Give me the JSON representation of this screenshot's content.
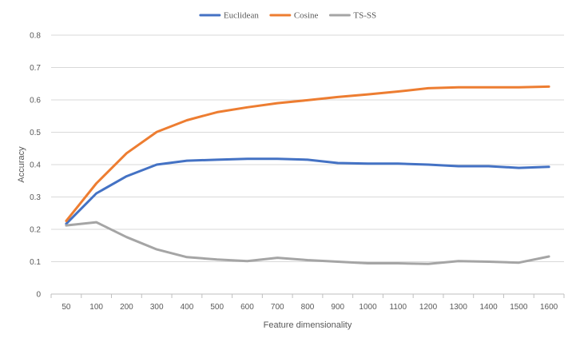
{
  "chart_data": {
    "type": "line",
    "title": "",
    "xlabel": "Feature dimensionality",
    "ylabel": "Accuracy",
    "ylim": [
      0,
      0.8
    ],
    "yticks": [
      "0",
      "0.1",
      "0.2",
      "0.3",
      "0.4",
      "0.5",
      "0.6",
      "0.7",
      "0.8"
    ],
    "grid": "horizontal",
    "legend_position": "top",
    "categories": [
      "50",
      "100",
      "200",
      "300",
      "400",
      "500",
      "600",
      "700",
      "800",
      "900",
      "1000",
      "1100",
      "1200",
      "1300",
      "1400",
      "1500",
      "1600"
    ],
    "series": [
      {
        "name": "Euclidean",
        "color": "#4472C4",
        "values": [
          0.217,
          0.311,
          0.364,
          0.4,
          0.412,
          0.415,
          0.418,
          0.418,
          0.415,
          0.405,
          0.403,
          0.403,
          0.4,
          0.395,
          0.395,
          0.39,
          0.393
        ]
      },
      {
        "name": "Cosine",
        "color": "#ED7D31",
        "values": [
          0.226,
          0.342,
          0.435,
          0.501,
          0.537,
          0.562,
          0.577,
          0.59,
          0.599,
          0.609,
          0.617,
          0.626,
          0.636,
          0.639,
          0.639,
          0.639,
          0.641
        ]
      },
      {
        "name": "TS-SS",
        "color": "#A5A5A5",
        "values": [
          0.212,
          0.222,
          0.176,
          0.138,
          0.114,
          0.107,
          0.102,
          0.112,
          0.105,
          0.1,
          0.095,
          0.095,
          0.093,
          0.102,
          0.1,
          0.097,
          0.116
        ]
      }
    ]
  }
}
